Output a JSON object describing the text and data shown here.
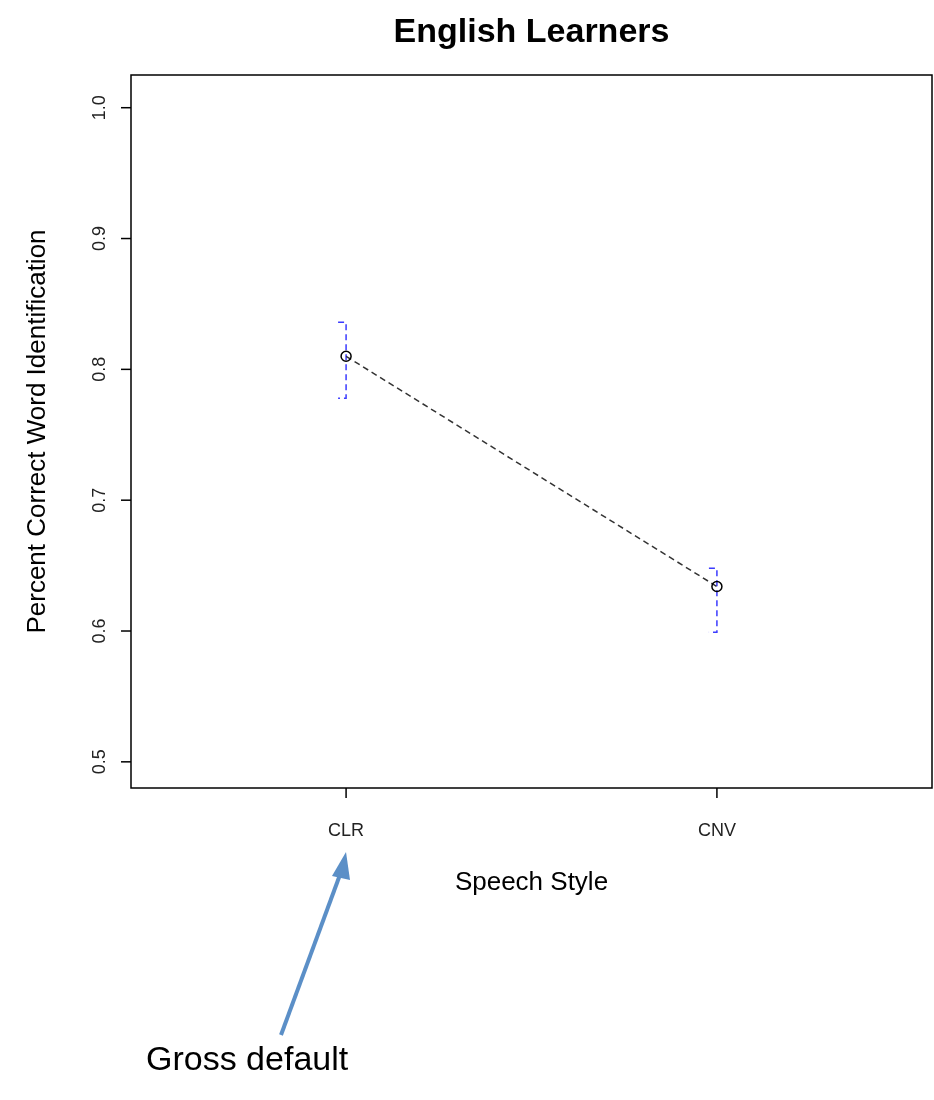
{
  "chart_data": {
    "type": "line",
    "title": "English Learners",
    "xlabel": "Speech Style",
    "ylabel": "Percent Correct Word Identification",
    "categories": [
      "CLR",
      "CNV"
    ],
    "series": [
      {
        "color": "#333333",
        "values": [
          0.81,
          0.634
        ],
        "errors": [
          [
            0.778,
            0.836
          ],
          [
            0.599,
            0.648
          ]
        ]
      }
    ],
    "ylim": [
      0.48,
      1.025
    ],
    "yticks": [
      0.5,
      0.6,
      0.7,
      0.8,
      0.9,
      {
        "value": 1,
        "label": "1.0"
      }
    ],
    "marker": "circle",
    "line_style": "dashed",
    "grid": false,
    "annotations": [
      "Gross default"
    ]
  }
}
